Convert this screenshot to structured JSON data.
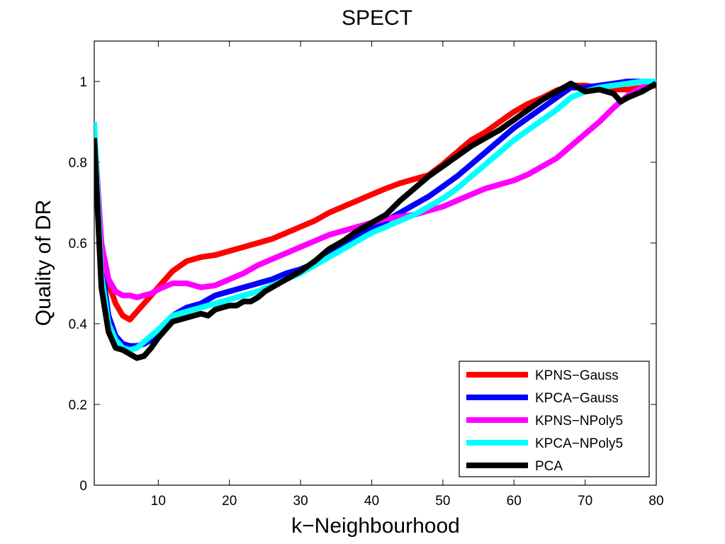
{
  "chart_data": {
    "type": "line",
    "title": "SPECT",
    "xlabel": "k−Neighbourhood",
    "ylabel": "Quality of DR",
    "xlim": [
      1,
      80
    ],
    "ylim": [
      0,
      1.1
    ],
    "xticks": [
      10,
      20,
      30,
      40,
      50,
      60,
      70,
      80
    ],
    "yticks": [
      0,
      0.2,
      0.4,
      0.6,
      0.8,
      1
    ],
    "ytick_labels": [
      "0",
      "0.2",
      "0.4",
      "0.6",
      "0.8",
      "1"
    ],
    "grid": false,
    "legend_position": "bottom-right",
    "series": [
      {
        "name": "KPNS−Gauss",
        "color": "#ff0000",
        "x": [
          1,
          2,
          3,
          4,
          5,
          6,
          7,
          8,
          9,
          10,
          12,
          14,
          16,
          18,
          20,
          22,
          24,
          26,
          28,
          30,
          32,
          34,
          36,
          38,
          40,
          42,
          44,
          46,
          48,
          50,
          52,
          54,
          56,
          58,
          60,
          62,
          64,
          66,
          68,
          70,
          72,
          74,
          76,
          78,
          80
        ],
        "y": [
          0.85,
          0.6,
          0.5,
          0.45,
          0.42,
          0.41,
          0.43,
          0.45,
          0.47,
          0.49,
          0.53,
          0.555,
          0.565,
          0.57,
          0.58,
          0.59,
          0.6,
          0.61,
          0.625,
          0.64,
          0.655,
          0.675,
          0.69,
          0.705,
          0.72,
          0.735,
          0.748,
          0.758,
          0.768,
          0.795,
          0.825,
          0.855,
          0.875,
          0.9,
          0.925,
          0.945,
          0.96,
          0.978,
          0.99,
          0.99,
          0.985,
          0.98,
          0.98,
          0.985,
          0.99
        ]
      },
      {
        "name": "KPCA−Gauss",
        "color": "#0000ff",
        "x": [
          1,
          2,
          3,
          4,
          5,
          6,
          7,
          8,
          9,
          10,
          12,
          14,
          16,
          18,
          20,
          22,
          24,
          26,
          28,
          30,
          32,
          34,
          36,
          38,
          40,
          42,
          44,
          46,
          48,
          50,
          52,
          54,
          56,
          58,
          60,
          62,
          64,
          66,
          68,
          70,
          72,
          74,
          76,
          78,
          80
        ],
        "y": [
          0.85,
          0.55,
          0.42,
          0.37,
          0.35,
          0.345,
          0.345,
          0.35,
          0.36,
          0.38,
          0.42,
          0.44,
          0.45,
          0.47,
          0.48,
          0.49,
          0.5,
          0.51,
          0.525,
          0.535,
          0.55,
          0.575,
          0.6,
          0.62,
          0.635,
          0.655,
          0.675,
          0.695,
          0.715,
          0.74,
          0.765,
          0.795,
          0.825,
          0.855,
          0.885,
          0.91,
          0.935,
          0.96,
          0.985,
          0.985,
          0.99,
          0.995,
          1.0,
          1.0,
          1.0
        ]
      },
      {
        "name": "KPNS−NPoly5",
        "color": "#ff00ff",
        "x": [
          1,
          2,
          3,
          4,
          5,
          6,
          7,
          8,
          9,
          10,
          12,
          14,
          16,
          18,
          20,
          22,
          24,
          26,
          28,
          30,
          32,
          34,
          36,
          38,
          40,
          42,
          44,
          46,
          48,
          50,
          52,
          54,
          56,
          58,
          60,
          62,
          64,
          66,
          68,
          70,
          72,
          74,
          76,
          78,
          80
        ],
        "y": [
          0.88,
          0.6,
          0.51,
          0.48,
          0.47,
          0.47,
          0.465,
          0.47,
          0.475,
          0.485,
          0.5,
          0.5,
          0.49,
          0.495,
          0.51,
          0.525,
          0.545,
          0.56,
          0.575,
          0.59,
          0.605,
          0.62,
          0.63,
          0.64,
          0.65,
          0.66,
          0.665,
          0.67,
          0.68,
          0.69,
          0.705,
          0.72,
          0.735,
          0.745,
          0.755,
          0.77,
          0.79,
          0.81,
          0.84,
          0.87,
          0.9,
          0.935,
          0.965,
          0.985,
          1.0
        ]
      },
      {
        "name": "KPCA−NPoly5",
        "color": "#00ffff",
        "x": [
          1,
          2,
          3,
          4,
          5,
          6,
          7,
          8,
          9,
          10,
          12,
          14,
          16,
          18,
          20,
          22,
          24,
          26,
          28,
          30,
          32,
          34,
          36,
          38,
          40,
          42,
          44,
          46,
          48,
          50,
          52,
          54,
          56,
          58,
          60,
          62,
          64,
          66,
          68,
          70,
          72,
          74,
          76,
          78,
          80
        ],
        "y": [
          0.9,
          0.52,
          0.4,
          0.36,
          0.34,
          0.335,
          0.34,
          0.355,
          0.37,
          0.385,
          0.42,
          0.43,
          0.44,
          0.45,
          0.46,
          0.47,
          0.48,
          0.495,
          0.51,
          0.525,
          0.545,
          0.565,
          0.585,
          0.605,
          0.625,
          0.64,
          0.655,
          0.67,
          0.69,
          0.71,
          0.735,
          0.765,
          0.795,
          0.825,
          0.855,
          0.88,
          0.905,
          0.93,
          0.96,
          0.975,
          0.985,
          0.99,
          0.995,
          1.0,
          1.0
        ]
      },
      {
        "name": "PCA",
        "color": "#000000",
        "x": [
          1,
          2,
          3,
          4,
          5,
          6,
          7,
          8,
          9,
          10,
          12,
          14,
          16,
          17,
          18,
          19,
          20,
          21,
          22,
          23,
          24,
          25,
          26,
          28,
          30,
          32,
          34,
          36,
          38,
          40,
          42,
          44,
          46,
          48,
          50,
          52,
          54,
          56,
          58,
          60,
          62,
          64,
          66,
          68,
          70,
          72,
          74,
          75,
          76,
          78,
          80
        ],
        "y": [
          0.86,
          0.49,
          0.38,
          0.34,
          0.335,
          0.325,
          0.315,
          0.32,
          0.34,
          0.365,
          0.405,
          0.415,
          0.425,
          0.42,
          0.435,
          0.44,
          0.445,
          0.445,
          0.455,
          0.455,
          0.465,
          0.48,
          0.49,
          0.51,
          0.53,
          0.555,
          0.585,
          0.605,
          0.63,
          0.65,
          0.67,
          0.705,
          0.735,
          0.765,
          0.79,
          0.815,
          0.84,
          0.86,
          0.88,
          0.905,
          0.93,
          0.955,
          0.975,
          0.995,
          0.975,
          0.98,
          0.97,
          0.95,
          0.96,
          0.975,
          0.995
        ]
      }
    ]
  }
}
